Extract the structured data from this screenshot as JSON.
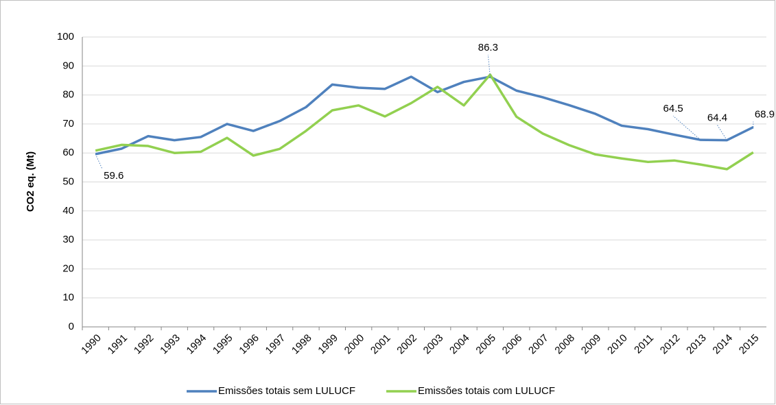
{
  "chart_data": {
    "type": "line",
    "y_label": "CO2 eq. (Mt)",
    "categories": [
      "1990",
      "1991",
      "1992",
      "1993",
      "1994",
      "1995",
      "1996",
      "1997",
      "1998",
      "1999",
      "2000",
      "2001",
      "2002",
      "2003",
      "2004",
      "2005",
      "2006",
      "2007",
      "2008",
      "2009",
      "2010",
      "2011",
      "2012",
      "2013",
      "2014",
      "2015"
    ],
    "series": [
      {
        "name": "Emissões totais sem LULUCF",
        "color": "#4f81bd",
        "values": [
          59.6,
          61.5,
          65.8,
          64.4,
          65.5,
          70.0,
          67.6,
          71.0,
          75.8,
          83.6,
          82.5,
          82.1,
          86.3,
          81.0,
          84.5,
          86.3,
          81.5,
          79.2,
          76.5,
          73.5,
          69.4,
          68.2,
          66.3,
          64.5,
          64.4,
          68.9
        ],
        "value_labels": [
          "59.6",
          null,
          null,
          null,
          null,
          null,
          null,
          null,
          null,
          null,
          null,
          null,
          null,
          null,
          null,
          "86.3",
          null,
          null,
          null,
          null,
          null,
          null,
          null,
          "64.5",
          "64.4",
          "68.9"
        ]
      },
      {
        "name": "Emissões totais com LULUCF",
        "color": "#92d050",
        "values": [
          60.8,
          62.8,
          62.4,
          60.0,
          60.4,
          65.2,
          59.1,
          61.4,
          67.6,
          74.7,
          76.4,
          72.6,
          77.2,
          82.8,
          76.4,
          87.0,
          72.5,
          66.7,
          62.7,
          59.5,
          58.1,
          56.9,
          57.4,
          56.0,
          54.4,
          60.2
        ]
      }
    ],
    "ylim": [
      0,
      100
    ],
    "yticks": [
      0,
      10,
      20,
      30,
      40,
      50,
      60,
      70,
      80,
      90,
      100
    ],
    "grid": true
  }
}
